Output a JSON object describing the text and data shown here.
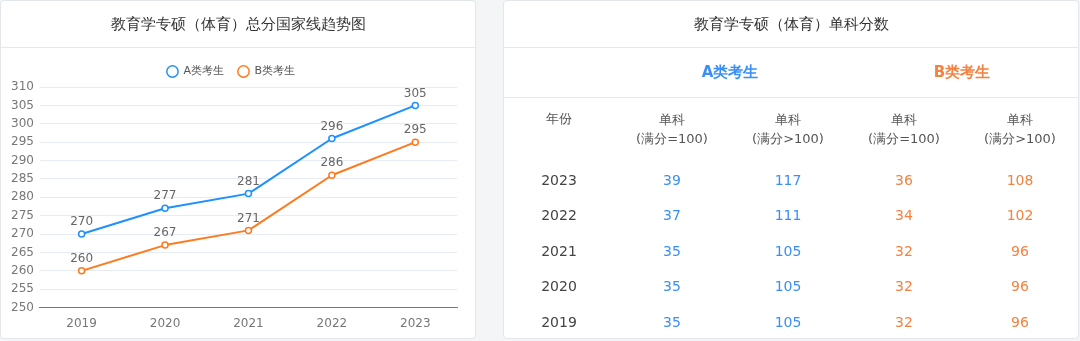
{
  "chart_data": [
    {
      "type": "line",
      "title": "教育学专硕（体育）总分国家线趋势图",
      "categories": [
        "2019",
        "2020",
        "2021",
        "2022",
        "2023"
      ],
      "series": [
        {
          "name": "A类考生",
          "color": "#1e90ff",
          "values": [
            270,
            277,
            281,
            296,
            305
          ]
        },
        {
          "name": "B类考生",
          "color": "#ff7a1f",
          "values": [
            260,
            267,
            271,
            286,
            295
          ]
        }
      ],
      "ylim": [
        250,
        310
      ],
      "yticks": [
        250,
        255,
        260,
        265,
        270,
        275,
        280,
        285,
        290,
        295,
        300,
        305,
        310
      ],
      "grid": "y",
      "legend": "top",
      "marker": "circle",
      "data_labels": true
    },
    {
      "type": "heatmap",
      "title": "教育学专硕（体育）单科分数",
      "annotations": [
        "年份",
        "A类考生",
        "B类考生"
      ],
      "categories": [
        "单科(满分=100)",
        "单科(满分>100)",
        "单科(满分=100)",
        "单科(满分>100)"
      ],
      "y_categories": [
        "2023",
        "2022",
        "2021",
        "2020",
        "2019"
      ],
      "colors": [
        "#3a8ff7",
        "#3a8ff7",
        "#f5813f",
        "#f5813f"
      ],
      "data_labels": true,
      "cells": [
        [
          39,
          117,
          36,
          108
        ],
        [
          37,
          111,
          34,
          102
        ],
        [
          35,
          105,
          32,
          96
        ],
        [
          35,
          105,
          32,
          96
        ],
        [
          35,
          105,
          32,
          96
        ]
      ]
    }
  ]
}
